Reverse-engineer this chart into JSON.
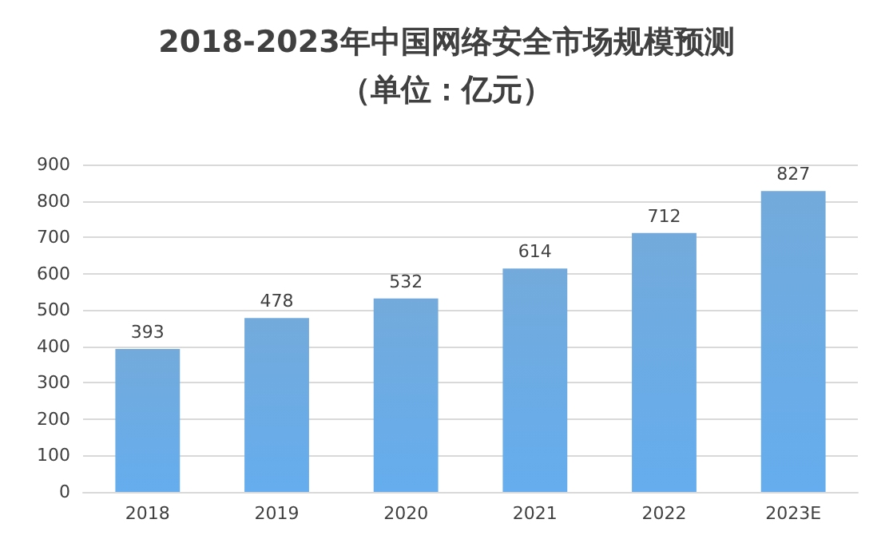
{
  "chart_data": {
    "type": "bar",
    "title": "2018-2023年中国网络安全市场规模预测",
    "subtitle": "（单位：亿元）",
    "categories": [
      "2018",
      "2019",
      "2020",
      "2021",
      "2022",
      "2023E"
    ],
    "values": [
      393,
      478,
      532,
      614,
      712,
      827
    ],
    "color": "#5b9bd5",
    "ylim": [
      0,
      900
    ],
    "yticks": [
      0,
      100,
      200,
      300,
      400,
      500,
      600,
      700,
      800,
      900
    ],
    "grid": "y",
    "data_labels": true
  }
}
